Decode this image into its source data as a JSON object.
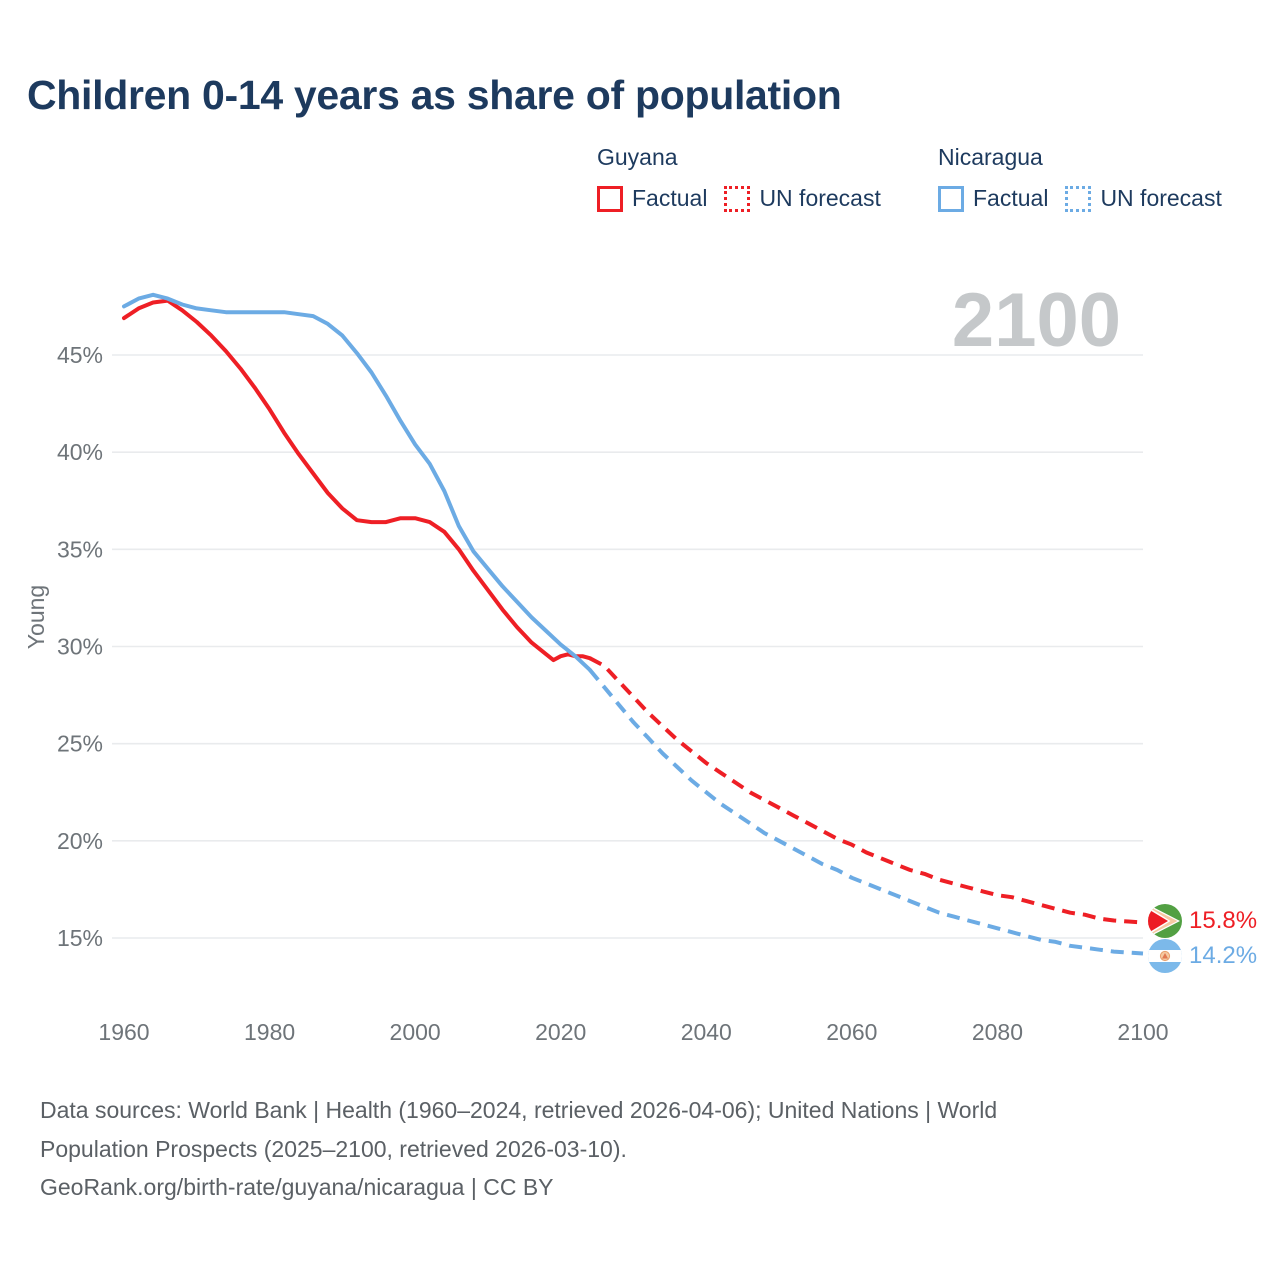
{
  "title": "Children 0-14 years as share of population",
  "watermark": "2100",
  "legend": {
    "groups": [
      {
        "name": "Guyana",
        "color": "#ee1f25",
        "items": [
          {
            "label": "Factual",
            "style": "solid"
          },
          {
            "label": "UN forecast",
            "style": "dotted"
          }
        ]
      },
      {
        "name": "Nicaragua",
        "color": "#6cabe4",
        "items": [
          {
            "label": "Factual",
            "style": "solid"
          },
          {
            "label": "UN forecast",
            "style": "dotted"
          }
        ]
      }
    ]
  },
  "end_labels": [
    {
      "series": "Guyana",
      "value": "15.8%",
      "color": "#ee1f25",
      "flag": "guyana-flag-icon"
    },
    {
      "series": "Nicaragua",
      "value": "14.2%",
      "color": "#6cabe4",
      "flag": "nicaragua-flag-icon"
    }
  ],
  "footer": {
    "lines": [
      "Data sources: World Bank | Health (1960–2024, retrieved 2026-04-06); United Nations | World",
      "Population Prospects (2025–2100, retrieved 2026-03-10).",
      "GeoRank.org/birth-rate/guyana/nicaragua | CC BY"
    ]
  },
  "colors": {
    "guyana": "#ee1f25",
    "nicaragua": "#6cabe4",
    "title_text": "#1d3a5e",
    "axis_text": "#6e7479",
    "gridline": "#e9ebed",
    "watermark": "#c5c8ca",
    "footer_text": "#5b6065"
  },
  "chart_data": {
    "type": "line",
    "title": "Children 0-14 years as share of population",
    "ylabel": "Young",
    "xlabel": "",
    "grid": true,
    "legend_position": "top-right",
    "xlim": [
      1958,
      2103
    ],
    "ylim": [
      13,
      49
    ],
    "yticks": [
      45,
      40,
      35,
      30,
      25,
      20,
      15
    ],
    "ytick_suffix": "%",
    "xticks": [
      1960,
      1980,
      2000,
      2020,
      2040,
      2060,
      2080,
      2100
    ],
    "series": [
      {
        "name": "Guyana Factual",
        "color": "#ee1f25",
        "style": "solid",
        "points": [
          [
            1960,
            46.9
          ],
          [
            1962,
            47.4
          ],
          [
            1964,
            47.7
          ],
          [
            1966,
            47.8
          ],
          [
            1968,
            47.3
          ],
          [
            1970,
            46.7
          ],
          [
            1972,
            46.0
          ],
          [
            1974,
            45.2
          ],
          [
            1976,
            44.3
          ],
          [
            1978,
            43.3
          ],
          [
            1980,
            42.2
          ],
          [
            1982,
            41.0
          ],
          [
            1984,
            39.9
          ],
          [
            1986,
            38.9
          ],
          [
            1988,
            37.9
          ],
          [
            1990,
            37.1
          ],
          [
            1992,
            36.5
          ],
          [
            1994,
            36.4
          ],
          [
            1996,
            36.4
          ],
          [
            1998,
            36.6
          ],
          [
            2000,
            36.6
          ],
          [
            2002,
            36.4
          ],
          [
            2004,
            35.9
          ],
          [
            2006,
            35.0
          ],
          [
            2008,
            33.9
          ],
          [
            2010,
            32.9
          ],
          [
            2012,
            31.9
          ],
          [
            2014,
            31.0
          ],
          [
            2016,
            30.2
          ],
          [
            2018,
            29.6
          ],
          [
            2019,
            29.3
          ],
          [
            2020,
            29.5
          ],
          [
            2021,
            29.6
          ],
          [
            2022,
            29.5
          ],
          [
            2023,
            29.5
          ],
          [
            2024,
            29.4
          ]
        ]
      },
      {
        "name": "Guyana UN forecast",
        "color": "#ee1f25",
        "style": "dashed",
        "points": [
          [
            2024,
            29.4
          ],
          [
            2026,
            29.0
          ],
          [
            2028,
            28.2
          ],
          [
            2030,
            27.4
          ],
          [
            2032,
            26.6
          ],
          [
            2034,
            25.9
          ],
          [
            2036,
            25.2
          ],
          [
            2038,
            24.6
          ],
          [
            2040,
            24.0
          ],
          [
            2042,
            23.5
          ],
          [
            2044,
            23.0
          ],
          [
            2046,
            22.5
          ],
          [
            2048,
            22.1
          ],
          [
            2050,
            21.7
          ],
          [
            2052,
            21.3
          ],
          [
            2054,
            20.9
          ],
          [
            2056,
            20.5
          ],
          [
            2058,
            20.1
          ],
          [
            2060,
            19.8
          ],
          [
            2062,
            19.4
          ],
          [
            2064,
            19.1
          ],
          [
            2066,
            18.8
          ],
          [
            2068,
            18.5
          ],
          [
            2070,
            18.3
          ],
          [
            2072,
            18.0
          ],
          [
            2074,
            17.8
          ],
          [
            2076,
            17.6
          ],
          [
            2078,
            17.4
          ],
          [
            2080,
            17.2
          ],
          [
            2082,
            17.1
          ],
          [
            2084,
            16.9
          ],
          [
            2086,
            16.7
          ],
          [
            2088,
            16.5
          ],
          [
            2090,
            16.3
          ],
          [
            2092,
            16.2
          ],
          [
            2094,
            16.0
          ],
          [
            2096,
            15.9
          ],
          [
            2098,
            15.85
          ],
          [
            2100,
            15.8
          ]
        ]
      },
      {
        "name": "Nicaragua Factual",
        "color": "#6cabe4",
        "style": "solid",
        "points": [
          [
            1960,
            47.5
          ],
          [
            1962,
            47.9
          ],
          [
            1964,
            48.1
          ],
          [
            1966,
            47.9
          ],
          [
            1968,
            47.6
          ],
          [
            1970,
            47.4
          ],
          [
            1972,
            47.3
          ],
          [
            1974,
            47.2
          ],
          [
            1976,
            47.2
          ],
          [
            1978,
            47.2
          ],
          [
            1980,
            47.2
          ],
          [
            1982,
            47.2
          ],
          [
            1984,
            47.1
          ],
          [
            1986,
            47.0
          ],
          [
            1988,
            46.6
          ],
          [
            1990,
            46.0
          ],
          [
            1992,
            45.1
          ],
          [
            1994,
            44.1
          ],
          [
            1996,
            42.9
          ],
          [
            1998,
            41.6
          ],
          [
            2000,
            40.4
          ],
          [
            2002,
            39.4
          ],
          [
            2004,
            38.0
          ],
          [
            2006,
            36.2
          ],
          [
            2008,
            34.9
          ],
          [
            2010,
            34.0
          ],
          [
            2012,
            33.1
          ],
          [
            2014,
            32.3
          ],
          [
            2016,
            31.5
          ],
          [
            2018,
            30.8
          ],
          [
            2020,
            30.1
          ],
          [
            2022,
            29.5
          ],
          [
            2024,
            28.8
          ]
        ]
      },
      {
        "name": "Nicaragua UN forecast",
        "color": "#6cabe4",
        "style": "dashed",
        "points": [
          [
            2024,
            28.8
          ],
          [
            2026,
            27.9
          ],
          [
            2028,
            27.0
          ],
          [
            2030,
            26.1
          ],
          [
            2032,
            25.3
          ],
          [
            2034,
            24.5
          ],
          [
            2036,
            23.8
          ],
          [
            2038,
            23.1
          ],
          [
            2040,
            22.5
          ],
          [
            2042,
            21.9
          ],
          [
            2044,
            21.4
          ],
          [
            2046,
            20.9
          ],
          [
            2048,
            20.4
          ],
          [
            2050,
            20.0
          ],
          [
            2052,
            19.6
          ],
          [
            2054,
            19.2
          ],
          [
            2056,
            18.8
          ],
          [
            2058,
            18.5
          ],
          [
            2060,
            18.1
          ],
          [
            2062,
            17.8
          ],
          [
            2064,
            17.5
          ],
          [
            2066,
            17.2
          ],
          [
            2068,
            16.9
          ],
          [
            2070,
            16.6
          ],
          [
            2072,
            16.3
          ],
          [
            2074,
            16.1
          ],
          [
            2076,
            15.9
          ],
          [
            2078,
            15.7
          ],
          [
            2080,
            15.5
          ],
          [
            2082,
            15.3
          ],
          [
            2084,
            15.1
          ],
          [
            2086,
            14.9
          ],
          [
            2088,
            14.8
          ],
          [
            2090,
            14.6
          ],
          [
            2092,
            14.5
          ],
          [
            2094,
            14.4
          ],
          [
            2096,
            14.3
          ],
          [
            2098,
            14.25
          ],
          [
            2100,
            14.2
          ]
        ]
      }
    ],
    "end_annotations": [
      {
        "label": "15.8%",
        "series": "Guyana",
        "y": 15.8
      },
      {
        "label": "14.2%",
        "series": "Nicaragua",
        "y": 14.2
      }
    ]
  }
}
